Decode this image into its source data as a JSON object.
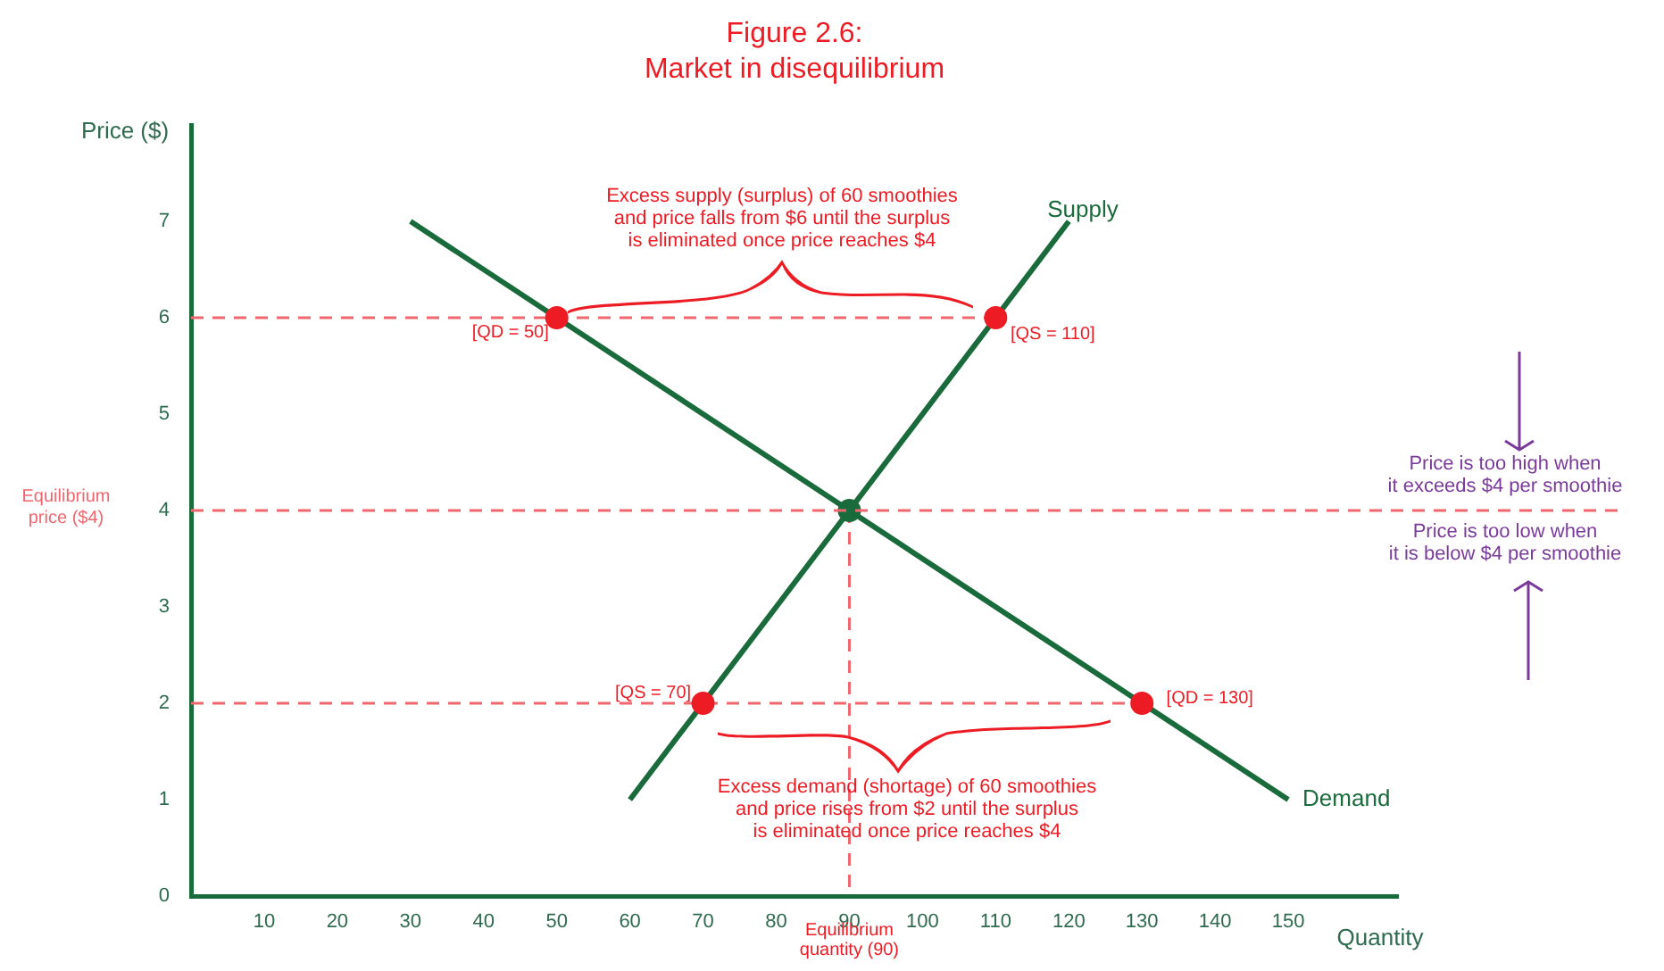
{
  "chart_data": {
    "type": "line",
    "title": "Figure 2.6:\nMarket in disequilibrium",
    "xlabel": "Quantity",
    "ylabel": "Price ($)",
    "xlim": [
      0,
      165
    ],
    "ylim": [
      0,
      8
    ],
    "xticks": [
      10,
      20,
      30,
      40,
      50,
      60,
      70,
      80,
      90,
      100,
      110,
      120,
      130,
      140,
      150
    ],
    "yticks": [
      0,
      1,
      2,
      3,
      4,
      5,
      6,
      7
    ],
    "grid": false,
    "legend": false,
    "series": [
      {
        "name": "Supply",
        "color": "#1a6b3c",
        "x": [
          60,
          120
        ],
        "values": [
          1,
          7
        ],
        "marker": "none",
        "line_style": "solid"
      },
      {
        "name": "Demand",
        "color": "#1a6b3c",
        "x": [
          30,
          150
        ],
        "values": [
          7,
          1
        ],
        "marker": "none",
        "line_style": "solid"
      },
      {
        "color": "#f0666e",
        "x": [
          0,
          110
        ],
        "values": [
          6,
          6
        ],
        "marker": "none",
        "line_style": "dashed"
      },
      {
        "color": "#f0666e",
        "x": [
          0,
          130
        ],
        "values": [
          2,
          2
        ],
        "marker": "none",
        "line_style": "dashed"
      },
      {
        "color": "#f0666e",
        "x": [
          90,
          90
        ],
        "values": [
          4,
          0
        ],
        "marker": "none",
        "line_style": "dashed"
      },
      {
        "type": "scatter",
        "color": "#ed1c24",
        "x": [
          50,
          110,
          70,
          130
        ],
        "values": [
          6,
          6,
          2,
          2
        ],
        "marker": "circle"
      },
      {
        "type": "scatter",
        "color": "#1a6b3c",
        "x": [
          90
        ],
        "values": [
          4
        ],
        "marker": "circle"
      }
    ],
    "ref_lines": [
      {
        "axis": "y",
        "value": 4,
        "label": "Equilibrium\nprice ($4)",
        "color": "#f0666e",
        "line_style": "dashed"
      }
    ],
    "annotations": [
      {
        "text": "[QD = 50]",
        "x": 50,
        "y": 6
      },
      {
        "text": "[QS = 110]",
        "x": 110,
        "y": 6
      },
      {
        "text": "[QS = 70]",
        "x": 70,
        "y": 2
      },
      {
        "text": "[QD = 130]",
        "x": 130,
        "y": 2
      },
      "Excess supply (surplus) of 60 smoothies\nand price falls from $6 until the surplus\nis eliminated once price reaches $4",
      "Excess demand (shortage) of 60 smoothies\nand price rises from $2 until the surplus\nis eliminated once price reaches $4",
      {
        "text": "Equilibrium\nquantity (90)",
        "x": 90,
        "y": 0
      },
      "Price is too high when\nit exceeds $4 per smoothie",
      "Price is too low when\nit is below $4 per smoothie"
    ]
  }
}
